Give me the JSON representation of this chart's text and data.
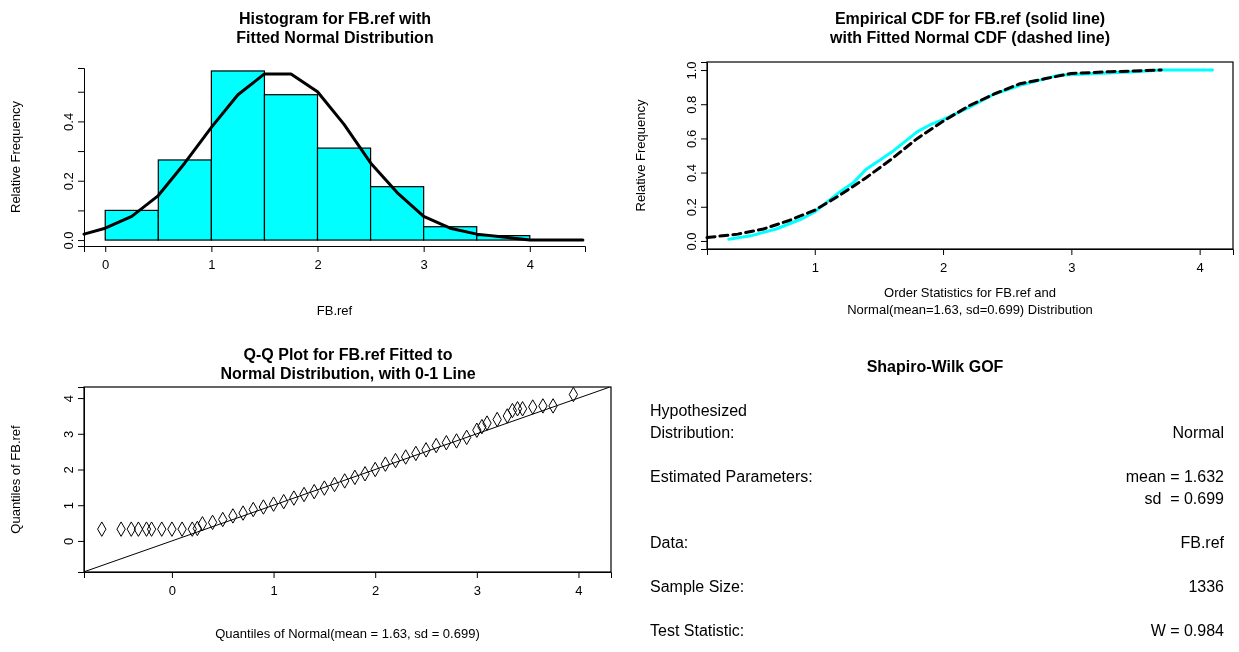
{
  "chart_data": [
    {
      "type": "histogram",
      "title": "Histogram for FB.ref with\nFitted Normal Distribution",
      "xlabel": "FB.ref",
      "ylabel": "Relative Frequency",
      "bins": [
        0,
        0.5,
        1,
        1.5,
        2,
        2.5,
        3,
        3.5,
        4
      ],
      "xlim": [
        -0.2,
        4.52
      ],
      "ylim": [
        -0.02,
        0.58
      ],
      "xticks": [
        0,
        1,
        2,
        3,
        4
      ],
      "yticks": [
        {
          "value": 0,
          "label": "0.0"
        },
        {
          "value": 0.1,
          "label": null
        },
        0.2,
        {
          "value": 0.3,
          "label": null
        },
        0.4,
        {
          "value": 0.5,
          "label": null
        }
      ],
      "series": [
        {
          "color": "#00ffff",
          "values": [
            0.1,
            0.27,
            0.57,
            0.49,
            0.31,
            0.18,
            0.045,
            0.015
          ]
        },
        {
          "type": "line",
          "color": "#000000",
          "x": [
            -0.2,
            0,
            0.25,
            0.5,
            0.75,
            1,
            1.25,
            1.5,
            1.75,
            2,
            2.25,
            2.5,
            2.75,
            3,
            3.25,
            3.5,
            3.75,
            4,
            4.5
          ],
          "values": [
            0.02,
            0.04,
            0.08,
            0.15,
            0.26,
            0.38,
            0.49,
            0.56,
            0.56,
            0.5,
            0.39,
            0.26,
            0.16,
            0.08,
            0.04,
            0.02,
            0.01,
            0,
            0
          ]
        }
      ]
    },
    {
      "type": "line",
      "title": "Empirical CDF for FB.ref (solid line)\nwith Fitted Normal CDF (dashed line)",
      "xlabel": "Order Statistics for FB.ref and\nNormal(mean=1.63, sd=0.699) Distribution",
      "ylabel": "Relative Frequency",
      "xlim": [
        0.16,
        4.26
      ],
      "ylim": [
        -0.047,
        1.047
      ],
      "xticks": [
        1,
        2,
        3,
        4
      ],
      "yticks": [
        {
          "value": 0,
          "label": "0.0"
        },
        0.2,
        0.4,
        0.6,
        0.8,
        {
          "value": 1,
          "label": "1.0"
        }
      ],
      "series": [
        {
          "color": "#00ffff",
          "line_style": "solid",
          "x": [
            0.33,
            0.5,
            0.7,
            0.9,
            1,
            1.1,
            1.2,
            1.3,
            1.4,
            1.5,
            1.6,
            1.7,
            1.8,
            1.9,
            2,
            2.2,
            2.4,
            2.6,
            2.8,
            2.9,
            3.2,
            3.5,
            3.7,
            4.1
          ],
          "values": [
            0.01,
            0.03,
            0.07,
            0.13,
            0.17,
            0.23,
            0.29,
            0.34,
            0.42,
            0.47,
            0.52,
            0.58,
            0.64,
            0.68,
            0.71,
            0.78,
            0.86,
            0.91,
            0.95,
            0.97,
            0.98,
            0.99,
            1,
            1
          ]
        },
        {
          "color": "#000000",
          "line_style": "dashed",
          "x": [
            0.16,
            0.4,
            0.6,
            0.8,
            1,
            1.2,
            1.4,
            1.6,
            1.8,
            2,
            2.2,
            2.4,
            2.6,
            2.8,
            3,
            3.3,
            3.7
          ],
          "values": [
            0.02,
            0.04,
            0.07,
            0.12,
            0.18,
            0.27,
            0.37,
            0.48,
            0.6,
            0.7,
            0.79,
            0.86,
            0.92,
            0.95,
            0.98,
            0.99,
            1
          ]
        }
      ]
    },
    {
      "type": "scatter",
      "title": "Q-Q Plot for FB.ref Fitted to\nNormal Distribution, with 0-1 Line",
      "xlabel": "Quantiles of Normal(mean = 1.63, sd = 0.699)",
      "ylabel": "Quantiles of FB.ref",
      "xlim": [
        -0.865,
        4.32
      ],
      "ylim": [
        -0.87,
        4.31
      ],
      "xticks": [
        0,
        1,
        2,
        3,
        4
      ],
      "yticks": [
        0,
        1,
        2,
        3,
        4
      ],
      "series": [
        {
          "color": "#000000",
          "marker": "diamond",
          "x": [
            -0.69,
            -0.5,
            -0.4,
            -0.33,
            -0.25,
            -0.2,
            -0.1,
            0,
            0.1,
            0.2,
            0.25,
            0.3,
            0.4,
            0.5,
            0.6,
            0.7,
            0.8,
            0.9,
            1,
            1.1,
            1.2,
            1.3,
            1.4,
            1.5,
            1.6,
            1.7,
            1.8,
            1.9,
            2,
            2.1,
            2.2,
            2.3,
            2.4,
            2.5,
            2.6,
            2.7,
            2.8,
            2.9,
            3,
            3.05,
            3.1,
            3.2,
            3.3,
            3.35,
            3.4,
            3.45,
            3.55,
            3.65,
            3.75,
            3.95
          ],
          "values": [
            0.33,
            0.33,
            0.33,
            0.33,
            0.33,
            0.33,
            0.33,
            0.33,
            0.33,
            0.33,
            0.35,
            0.48,
            0.52,
            0.6,
            0.7,
            0.78,
            0.88,
            0.95,
            1.03,
            1.1,
            1.2,
            1.3,
            1.38,
            1.48,
            1.58,
            1.68,
            1.78,
            1.88,
            2,
            2.15,
            2.25,
            2.35,
            2.45,
            2.55,
            2.67,
            2.75,
            2.8,
            2.9,
            3.1,
            3.2,
            3.3,
            3.4,
            3.5,
            3.65,
            3.7,
            3.7,
            3.75,
            3.78,
            3.78,
            4.1
          ]
        },
        {
          "type": "line",
          "color": "#000000",
          "marker": "none",
          "x": [
            -0.86,
            4.3
          ],
          "values": [
            -0.86,
            4.3
          ]
        }
      ]
    },
    {
      "type": "other",
      "title": "Shapiro-Wilk GOF",
      "annotations": [
        "Hypothesized\nDistribution:",
        "Normal",
        "Estimated Parameters:",
        "mean = 1.632\nsd  = 0.699",
        "Data:",
        "FB.ref",
        "Sample Size:",
        "1336",
        "Test Statistic:",
        "W = 0.984"
      ]
    }
  ]
}
